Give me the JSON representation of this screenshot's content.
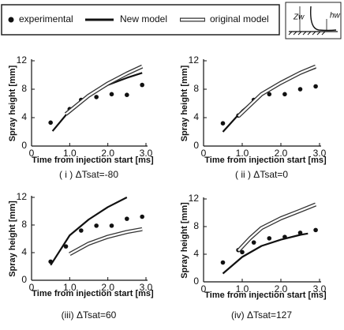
{
  "chart_data": [
    {
      "type": "line",
      "caption": "( i ) ΔTsat=-80",
      "x_label": "Time from injection start [ms]",
      "y_label": "Spray height [mm]",
      "xlim": [
        0,
        3
      ],
      "xticks": [
        0,
        {
          "value": 1,
          "label": "1.0"
        },
        {
          "value": 2,
          "label": "2.0"
        },
        {
          "value": 3,
          "label": "3.0"
        }
      ],
      "ylim": [
        0,
        12
      ],
      "yticks": [
        0,
        4,
        8,
        12
      ],
      "series": [
        {
          "name": "experimental",
          "style": "points",
          "color": "#111111",
          "x": [
            0.5,
            1.0,
            1.3,
            1.7,
            2.1,
            2.5,
            2.9
          ],
          "values": [
            3.3,
            5.2,
            6.5,
            6.9,
            7.3,
            7.2,
            8.6
          ]
        },
        {
          "name": "New model",
          "style": "solid",
          "color": "#111111",
          "x": [
            0.55,
            1.0,
            1.5,
            2.0,
            2.5,
            2.9
          ],
          "values": [
            2.1,
            5.0,
            7.0,
            8.6,
            9.6,
            10.3
          ]
        },
        {
          "name": "original model",
          "style": "double",
          "color": "#333333",
          "x": [
            0.9,
            1.5,
            2.0,
            2.5,
            2.9
          ],
          "values": [
            4.5,
            7.1,
            8.8,
            10.2,
            11.2
          ]
        }
      ]
    },
    {
      "type": "line",
      "caption": "( ii ) ΔTsat=0",
      "x_label": "Time from injection start [ms]",
      "y_label": "Spray height [mm]",
      "xlim": [
        0,
        3
      ],
      "xticks": [
        0,
        {
          "value": 1,
          "label": "1.0"
        },
        {
          "value": 2,
          "label": "2.0"
        },
        {
          "value": 3,
          "label": "3.0"
        }
      ],
      "ylim": [
        0,
        12
      ],
      "yticks": [
        0,
        4,
        8,
        12
      ],
      "series": [
        {
          "style": "points",
          "color": "#111111",
          "x": [
            0.5,
            0.9,
            1.3,
            1.7,
            2.1,
            2.5,
            2.9
          ],
          "values": [
            3.2,
            4.3,
            6.5,
            7.3,
            7.3,
            8.0,
            8.4
          ]
        },
        {
          "style": "solid",
          "color": "#111111",
          "x": [
            0.5,
            1.0,
            1.5,
            2.0,
            2.5,
            2.9
          ],
          "values": [
            2.0,
            5.0,
            7.2,
            8.8,
            10.2,
            11.0
          ]
        },
        {
          "style": "double",
          "color": "#333333",
          "x": [
            0.9,
            1.5,
            2.0,
            2.5,
            2.9
          ],
          "values": [
            4.2,
            7.3,
            8.9,
            10.3,
            11.2
          ]
        }
      ]
    },
    {
      "type": "line",
      "caption": "(iii) ΔTsat=60",
      "x_label": "Time from injection start [ms]",
      "y_label": "Spray height [mm]",
      "xlim": [
        0,
        3
      ],
      "xticks": [
        0,
        {
          "value": 1,
          "label": "1.0"
        },
        {
          "value": 2,
          "label": "2.0"
        },
        {
          "value": 3,
          "label": "3.0"
        }
      ],
      "ylim": [
        0,
        12
      ],
      "yticks": [
        0,
        4,
        8,
        12
      ],
      "series": [
        {
          "style": "points",
          "color": "#111111",
          "x": [
            0.5,
            0.9,
            1.3,
            1.7,
            2.1,
            2.5,
            2.9
          ],
          "values": [
            2.7,
            4.9,
            7.2,
            7.9,
            7.9,
            8.9,
            9.2
          ]
        },
        {
          "style": "solid",
          "color": "#111111",
          "x": [
            0.5,
            1.0,
            1.5,
            2.0,
            2.5
          ],
          "values": [
            2.2,
            6.5,
            8.8,
            10.6,
            12.0
          ]
        },
        {
          "style": "double",
          "color": "#333333",
          "x": [
            1.0,
            1.5,
            2.0,
            2.5,
            2.9
          ],
          "values": [
            3.8,
            5.3,
            6.3,
            7.0,
            7.4
          ]
        }
      ]
    },
    {
      "type": "line",
      "caption": "(iv) ΔTsat=127",
      "x_label": "Time from injection start [ms]",
      "y_label": "Spray height [mm]",
      "xlim": [
        0,
        3
      ],
      "xticks": [
        0,
        {
          "value": 1,
          "label": "1.0"
        },
        {
          "value": 2,
          "label": "2.0"
        },
        {
          "value": 3,
          "label": "3.0"
        }
      ],
      "ylim": [
        0,
        12
      ],
      "yticks": [
        0,
        4,
        8,
        12
      ],
      "series": [
        {
          "style": "points",
          "color": "#111111",
          "x": [
            0.5,
            0.9,
            1.0,
            1.3,
            1.7,
            2.1,
            2.5,
            2.9
          ],
          "values": [
            2.8,
            4.6,
            4.3,
            5.7,
            6.3,
            6.5,
            7.1,
            7.5
          ]
        },
        {
          "style": "solid",
          "color": "#111111",
          "x": [
            0.5,
            1.0,
            1.5,
            2.0,
            2.5,
            2.7
          ],
          "values": [
            1.2,
            3.6,
            5.2,
            6.1,
            6.8,
            7.0
          ]
        },
        {
          "style": "double",
          "color": "#333333",
          "x": [
            0.9,
            1.2,
            1.5,
            2.0,
            2.5,
            2.9
          ],
          "values": [
            4.5,
            6.3,
            7.8,
            9.2,
            10.3,
            11.2
          ]
        }
      ]
    }
  ],
  "inset": {
    "labels": [
      "Zw",
      "hw"
    ]
  }
}
